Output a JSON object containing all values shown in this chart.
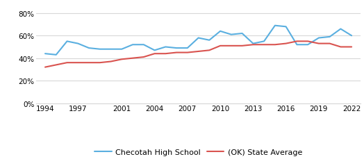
{
  "checotah_years": [
    1994,
    1995,
    1996,
    1997,
    1998,
    1999,
    2000,
    2001,
    2002,
    2003,
    2004,
    2005,
    2006,
    2007,
    2008,
    2009,
    2010,
    2011,
    2012,
    2013,
    2014,
    2015,
    2016,
    2017,
    2018,
    2019,
    2020,
    2021,
    2022
  ],
  "checotah_values": [
    0.44,
    0.43,
    0.55,
    0.53,
    0.49,
    0.48,
    0.48,
    0.48,
    0.52,
    0.52,
    0.47,
    0.5,
    0.49,
    0.49,
    0.58,
    0.56,
    0.64,
    0.61,
    0.62,
    0.53,
    0.55,
    0.69,
    0.68,
    0.52,
    0.52,
    0.58,
    0.59,
    0.66,
    0.6
  ],
  "state_years": [
    1994,
    1995,
    1996,
    1997,
    1998,
    1999,
    2000,
    2001,
    2002,
    2003,
    2004,
    2005,
    2006,
    2007,
    2008,
    2009,
    2010,
    2011,
    2012,
    2013,
    2014,
    2015,
    2016,
    2017,
    2018,
    2019,
    2020,
    2021,
    2022
  ],
  "state_values": [
    0.32,
    0.34,
    0.36,
    0.36,
    0.36,
    0.36,
    0.37,
    0.39,
    0.4,
    0.41,
    0.44,
    0.44,
    0.45,
    0.45,
    0.46,
    0.47,
    0.51,
    0.51,
    0.51,
    0.52,
    0.52,
    0.52,
    0.53,
    0.55,
    0.55,
    0.53,
    0.53,
    0.5,
    0.5
  ],
  "checotah_color": "#5aafe0",
  "state_color": "#d9534f",
  "checotah_label": "Checotah High School",
  "state_label": "(OK) State Average",
  "xlim": [
    1993.2,
    2022.8
  ],
  "ylim": [
    0.0,
    0.88
  ],
  "yticks": [
    0.0,
    0.2,
    0.4,
    0.6,
    0.8
  ],
  "xticks": [
    1994,
    1997,
    2001,
    2004,
    2007,
    2010,
    2013,
    2016,
    2019,
    2022
  ],
  "grid_color": "#d8d8d8",
  "bg_color": "#ffffff",
  "line_width": 1.5,
  "tick_fontsize": 7.5,
  "legend_fontsize": 8.0
}
